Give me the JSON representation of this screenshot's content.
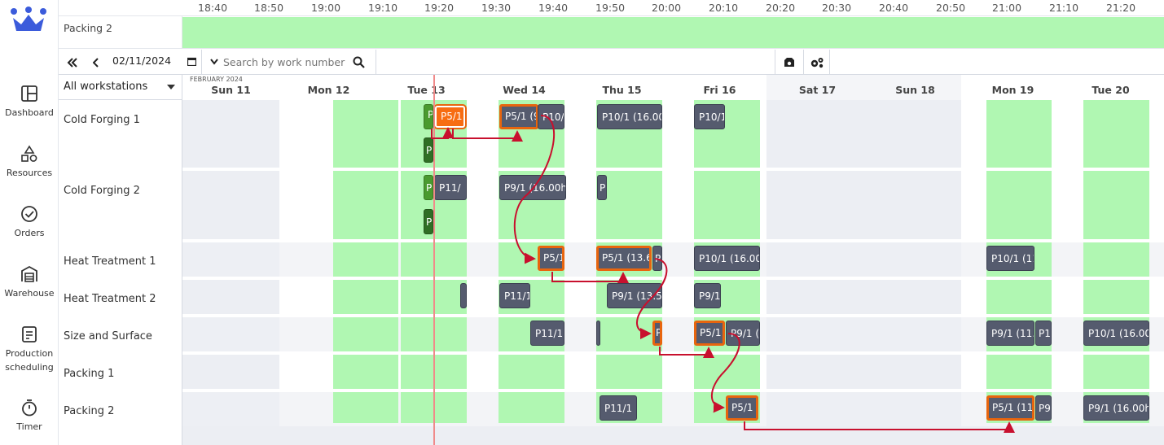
{
  "sidebar": {
    "items": [
      {
        "label": "Dashboard",
        "icon": "dashboard-icon"
      },
      {
        "label": "Resources",
        "icon": "resources-icon"
      },
      {
        "label": "Orders",
        "icon": "orders-icon"
      },
      {
        "label": "Warehouse",
        "icon": "warehouse-icon"
      },
      {
        "label": "Production scheduling",
        "icon": "production-scheduling-icon",
        "active": true
      },
      {
        "label": "Timer",
        "icon": "timer-icon"
      }
    ]
  },
  "timeline": {
    "ticks": [
      "18:40",
      "18:50",
      "19:00",
      "19:10",
      "19:20",
      "19:30",
      "19:40",
      "19:50",
      "20:00",
      "20:10",
      "20:20",
      "20:30",
      "20:40",
      "20:50",
      "21:00",
      "21:10",
      "21:20"
    ],
    "row_label": "Packing 2"
  },
  "toolbar": {
    "date_value": "02/11/2024",
    "search_placeholder": "Search by work number"
  },
  "workstation_filter": "All workstations",
  "calendar": {
    "month": "FEBRUARY 2024",
    "days": [
      "Sun 11",
      "Mon 12",
      "Tue 13",
      "Wed 14",
      "Thu 15",
      "Fri 16",
      "Sat 17",
      "Sun 18",
      "Mon 19",
      "Tue 20"
    ]
  },
  "workstations": [
    "Cold Forging 1",
    "Cold Forging 2",
    "Heat Treatment 1",
    "Heat Treatment 2",
    "Size and Surface",
    "Packing 1",
    "Packing 2"
  ],
  "jobs": {
    "cf1": [
      "P",
      "P5/1 (",
      "P5/1 (9",
      "P10/",
      "P10/1 (16.00h",
      "P10/1",
      "P"
    ],
    "cf2": [
      "P",
      "P11/",
      "P9/1 (16.00h)",
      "P",
      "P"
    ],
    "ht1": [
      "P5/1",
      "P5/1 (13.62",
      "P",
      "P10/1 (16.00h",
      "P10/1 (11"
    ],
    "ht2": [
      "P11/1",
      "P9/1 (13.55",
      "P9/1"
    ],
    "ss": [
      "P11/1",
      "P",
      "P5/1",
      "P9/1 (8",
      "P9/1 (11.9",
      "P1",
      "P10/1 (16.00h"
    ],
    "p2": [
      "P11/1 (",
      "P5/1 (",
      "P5/1 (11.",
      "P9",
      "P9/1 (16.00h)"
    ]
  },
  "colors": {
    "accent": "#e8650e",
    "available": "#b0f7b2",
    "job": "#555b6e",
    "link": "#c8102e"
  }
}
